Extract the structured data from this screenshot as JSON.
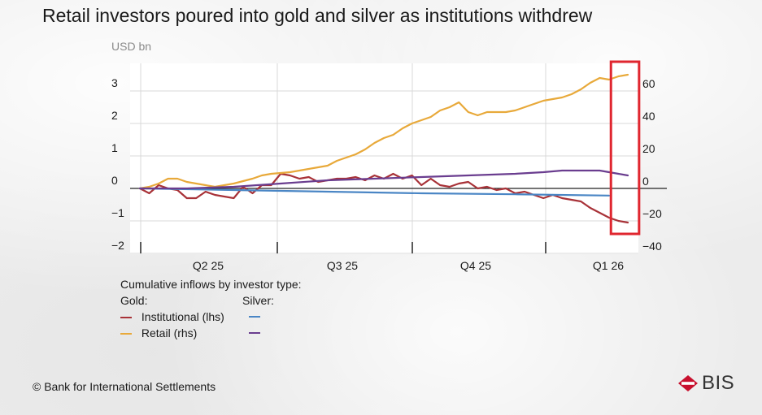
{
  "title": "Retail investors poured into gold and silver as institutions withdrew",
  "footer": "© Bank for International Settlements",
  "logo": {
    "text": "BIS",
    "color": "#c8102e"
  },
  "legend": {
    "heading": "Cumulative inflows by investor type:",
    "gold_label": "Gold:",
    "silver_label": "Silver:",
    "rows": [
      {
        "name": "Institutional (lhs)",
        "gold_color": "#a83238",
        "silver_color": "#4a86c5"
      },
      {
        "name": "Retail (rhs)",
        "gold_color": "#e8a93a",
        "silver_color": "#6a3d8f"
      }
    ]
  },
  "colors": {
    "gold_institutional": "#a83238",
    "gold_retail": "#e8a93a",
    "silver_institutional": "#4a86c5",
    "silver_retail": "#6a3d8f",
    "highlight": "#e0262f",
    "plot_bg": "#ffffff",
    "grid": "#d9d9d9"
  },
  "chart_data": {
    "type": "line",
    "left_axis": {
      "unit": "USD bn",
      "range": [
        -2,
        3.5
      ],
      "ticks": [
        -2,
        -1,
        0,
        1,
        2,
        3
      ]
    },
    "right_axis": {
      "range": [
        -40,
        70
      ],
      "ticks": [
        -40,
        -20,
        0,
        20,
        40,
        60
      ]
    },
    "x_tick_labels": [
      "Q2 25",
      "Q3 25",
      "Q4 25",
      "Q1 26"
    ],
    "x_range": [
      0,
      52
    ],
    "grid": true,
    "highlight_range_x": [
      50.2,
      53.2
    ],
    "series": [
      {
        "name": "Institutional (lhs)",
        "metal": "Gold",
        "axis": "lhs",
        "x": [
          0,
          1,
          2,
          3,
          4,
          5,
          6,
          7,
          8,
          9,
          10,
          11,
          12,
          13,
          14,
          15,
          16,
          17,
          18,
          19,
          20,
          21,
          22,
          23,
          24,
          25,
          26,
          27,
          28,
          29,
          30,
          31,
          32,
          33,
          34,
          35,
          36,
          37,
          38,
          39,
          40,
          41,
          42,
          43,
          44,
          45,
          46,
          47,
          48,
          49,
          50,
          51,
          52
        ],
        "y": [
          0.0,
          -0.15,
          0.1,
          0.0,
          -0.05,
          -0.3,
          -0.3,
          -0.1,
          -0.2,
          -0.25,
          -0.3,
          0.05,
          -0.15,
          0.1,
          0.1,
          0.45,
          0.4,
          0.3,
          0.35,
          0.2,
          0.25,
          0.3,
          0.3,
          0.35,
          0.25,
          0.4,
          0.3,
          0.45,
          0.3,
          0.4,
          0.1,
          0.3,
          0.1,
          0.05,
          0.15,
          0.2,
          0.0,
          0.05,
          -0.05,
          0.0,
          -0.15,
          -0.1,
          -0.2,
          -0.3,
          -0.2,
          -0.3,
          -0.35,
          -0.4,
          -0.6,
          -0.75,
          -0.9,
          -1.0,
          -1.05
        ]
      },
      {
        "name": "Retail (rhs)",
        "metal": "Gold",
        "axis": "rhs",
        "x": [
          0,
          1,
          2,
          3,
          4,
          5,
          6,
          7,
          8,
          9,
          10,
          11,
          12,
          13,
          14,
          15,
          16,
          17,
          18,
          19,
          20,
          21,
          22,
          23,
          24,
          25,
          26,
          27,
          28,
          29,
          30,
          31,
          32,
          33,
          34,
          35,
          36,
          37,
          38,
          39,
          40,
          41,
          42,
          43,
          44,
          45,
          46,
          47,
          48,
          49,
          50,
          51,
          52
        ],
        "y": [
          0.0,
          1.0,
          3.0,
          6.0,
          6.0,
          4.0,
          3.0,
          2.0,
          1.0,
          2.0,
          3.0,
          4.5,
          6.0,
          8.0,
          9.0,
          9.5,
          10.0,
          11.0,
          12.0,
          13.0,
          14.0,
          17.0,
          19.0,
          21.0,
          24.0,
          28.0,
          31.0,
          33.0,
          37.0,
          40.0,
          42.0,
          44.0,
          48.0,
          50.0,
          53.0,
          47.0,
          45.0,
          47.0,
          47.0,
          47.0,
          48.0,
          50.0,
          52.0,
          54.0,
          55.0,
          56.0,
          58.0,
          61.0,
          65.0,
          68.0,
          67.0,
          69.0,
          70.0
        ]
      },
      {
        "name": "Institutional",
        "metal": "Silver",
        "axis": "lhs",
        "x": [
          0,
          10,
          20,
          30,
          40,
          50
        ],
        "y": [
          0.0,
          -0.05,
          -0.1,
          -0.15,
          -0.18,
          -0.22
        ]
      },
      {
        "name": "Retail",
        "metal": "Silver",
        "axis": "lhs",
        "x": [
          0,
          5,
          10,
          15,
          20,
          25,
          30,
          35,
          40,
          43,
          45,
          47,
          49,
          51,
          52
        ],
        "y": [
          0.0,
          0.0,
          0.05,
          0.15,
          0.25,
          0.3,
          0.35,
          0.4,
          0.45,
          0.5,
          0.55,
          0.55,
          0.55,
          0.45,
          0.4
        ]
      }
    ]
  }
}
